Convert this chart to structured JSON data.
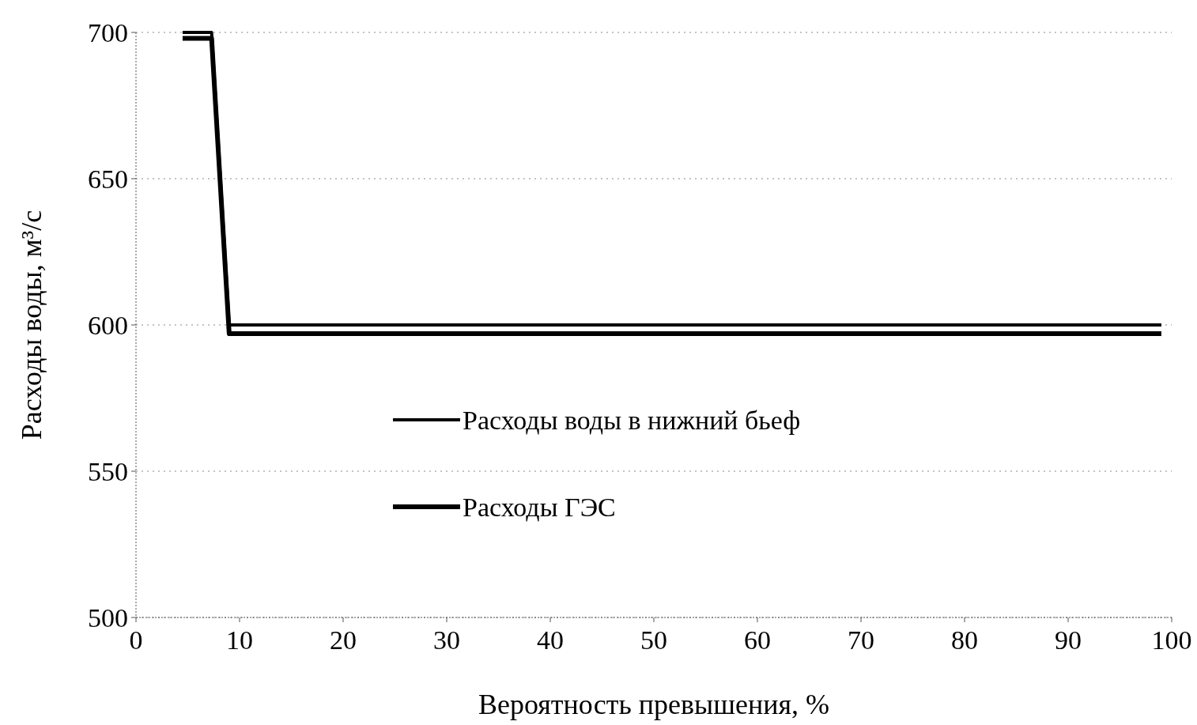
{
  "chart_data": {
    "type": "line",
    "xlabel": "Вероятность превышения, %",
    "ylabel": "Расходы воды, м³/с",
    "xlim": [
      0,
      100
    ],
    "xticks": [
      0,
      10,
      20,
      30,
      40,
      50,
      60,
      70,
      80,
      90,
      100
    ],
    "ylim": [
      500,
      700
    ],
    "yticks": [
      500,
      550,
      600,
      650,
      700
    ],
    "grid": "y",
    "legend": "left",
    "marker": "none",
    "line_style": "solid",
    "series": [
      {
        "name": "Расходы воды в нижний бьеф",
        "color": "#000000",
        "x": [
          4.5,
          7.3,
          9,
          99
        ],
        "values": [
          700,
          700,
          600,
          600
        ]
      },
      {
        "name": "Расходы ГЭС",
        "color": "#000000",
        "x": [
          4.5,
          7.3,
          9,
          99
        ],
        "values": [
          698,
          698,
          597,
          597
        ]
      }
    ]
  }
}
